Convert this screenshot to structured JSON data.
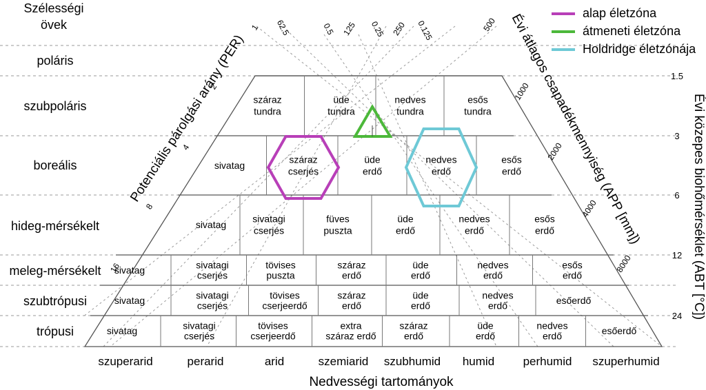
{
  "title_lines": [
    "Szélességi",
    "övek"
  ],
  "latitude_belts": [
    "poláris",
    "szubpoláris",
    "boreális",
    "hideg-mérsékelt",
    "meleg-mérsékelt",
    "szubtrópusi",
    "trópusi"
  ],
  "humidity_provinces": [
    "szuperarid",
    "perarid",
    "arid",
    "szemiarid",
    "szubhumid",
    "humid",
    "perhumid",
    "szuperhumid"
  ],
  "bottom_axis_label": "Nedvességi tartományok",
  "left_axis_label": "Potenciális párolgási arány (PER)",
  "right_axis_label": "Évi átlagos csapadékmennyiség (APP [mm])",
  "far_right_axis_label": "Évi közepes biohőmérséklet (ABT [°C])",
  "per_ticks": [
    "1",
    "2",
    "4",
    "8",
    "16"
  ],
  "per_top_ticks": [
    "62.5",
    "0.5",
    "0.25",
    "0.125"
  ],
  "app_top_ticks": [
    "125",
    "250",
    "500"
  ],
  "app_ticks": [
    "1000",
    "2000",
    "4000",
    "8000"
  ],
  "abt_ticks": [
    "1.5",
    "3",
    "6",
    "12",
    "24"
  ],
  "legend": [
    {
      "label": "alap életzóna",
      "color": "#b83fb8"
    },
    {
      "label": "átmeneti életzóna",
      "color": "#4cb83a"
    },
    {
      "label": "Holdridge életzónája",
      "color": "#6ec9d6"
    }
  ],
  "cells": {
    "row1": [
      [
        "száraz",
        "tundra"
      ],
      [
        "üde",
        "tundra"
      ],
      [
        "nedves",
        "tundra"
      ],
      [
        "esős",
        "tundra"
      ]
    ],
    "row2": [
      [
        "sivatag"
      ],
      [
        "száraz",
        "cserjés"
      ],
      [
        "üde",
        "erdő"
      ],
      [
        "nedves",
        "erdő"
      ],
      [
        "esős",
        "erdő"
      ]
    ],
    "row3": [
      [
        "sivatag"
      ],
      [
        "sivatagi",
        "cserjés"
      ],
      [
        "füves",
        "puszta"
      ],
      [
        "üde",
        "erdő"
      ],
      [
        "nedves",
        "erdő"
      ],
      [
        "esős",
        "erdő"
      ]
    ],
    "row4": [
      [
        "sivatag"
      ],
      [
        "sivatagi",
        "cserjés"
      ],
      [
        "tövises",
        "puszta"
      ],
      [
        "száraz",
        "erdő"
      ],
      [
        "üde",
        "erdő"
      ],
      [
        "nedves",
        "erdő"
      ],
      [
        "esős",
        "erdő"
      ]
    ],
    "row5": [
      [
        "sivatag"
      ],
      [
        "sivatagi",
        "cserjés"
      ],
      [
        "tövises",
        "cserjeerdő"
      ],
      [
        "száraz",
        "erdő"
      ],
      [
        "üde",
        "erdő"
      ],
      [
        "nedves",
        "erdő"
      ],
      [
        "esőerdő"
      ]
    ],
    "row6": [
      [
        "sivatag"
      ],
      [
        "sivatagi",
        "cserjés"
      ],
      [
        "tövises",
        "cserjeerdő"
      ],
      [
        "extra",
        "száraz erdő"
      ],
      [
        "száraz",
        "erdő"
      ],
      [
        "üde",
        "erdő"
      ],
      [
        "nedves",
        "erdő"
      ],
      [
        "esőerdő"
      ]
    ]
  }
}
